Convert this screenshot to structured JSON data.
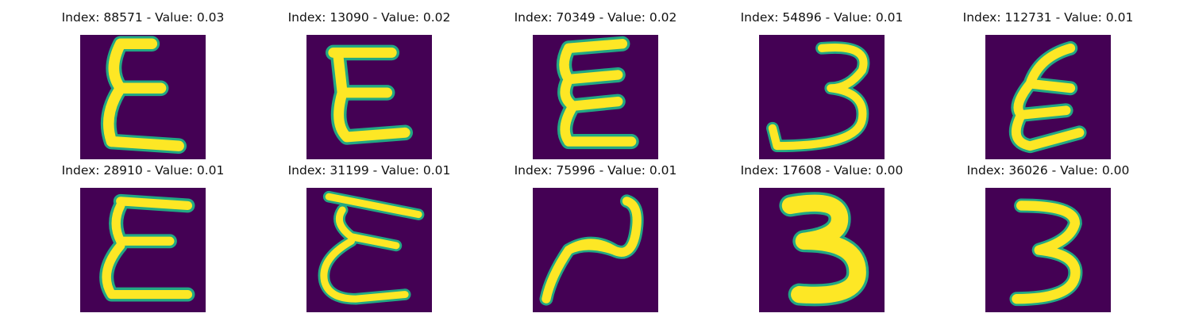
{
  "colors": {
    "background": "#440154",
    "foreground": "#fde725",
    "edge": "#22a884",
    "title_text": "#111111"
  },
  "panels": [
    {
      "title": "Index: 88571 - Value: 0.03",
      "glyph": "E"
    },
    {
      "title": "Index: 13090 - Value: 0.02",
      "glyph": "E"
    },
    {
      "title": "Index: 70349 - Value: 0.02",
      "glyph": "E"
    },
    {
      "title": "Index: 54896 - Value: 0.01",
      "glyph": "3"
    },
    {
      "title": "Index: 112731 - Value: 0.01",
      "glyph": "E"
    },
    {
      "title": "Index: 28910 - Value: 0.01",
      "glyph": "E"
    },
    {
      "title": "Index: 31199 - Value: 0.01",
      "glyph": "E"
    },
    {
      "title": "Index: 75996 - Value: 0.01",
      "glyph": "2"
    },
    {
      "title": "Index: 17608 - Value: 0.00",
      "glyph": "3"
    },
    {
      "title": "Index: 36026 - Value: 0.00",
      "glyph": "3"
    }
  ]
}
